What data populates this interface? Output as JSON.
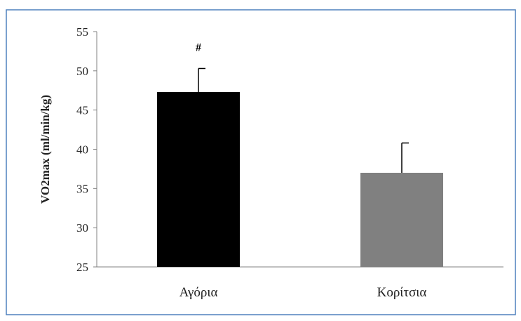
{
  "chart_data": {
    "type": "bar",
    "title": "",
    "xlabel": "",
    "ylabel": "VO2max (ml/min/kg)",
    "ylim": [
      25,
      55
    ],
    "yticks": [
      25,
      30,
      35,
      40,
      45,
      50,
      55
    ],
    "categories": [
      "Αγόρια",
      "Κορίτσια"
    ],
    "values": [
      47.3,
      37.0
    ],
    "error_plus": [
      3.0,
      3.8
    ],
    "annotations": [
      "#",
      ""
    ],
    "bar_colors": [
      "#000000",
      "#808080"
    ],
    "grid": false,
    "legend": "none"
  },
  "colors": {
    "frame_border": "#4f81bd",
    "axis": "#808080",
    "text": "#222222"
  }
}
